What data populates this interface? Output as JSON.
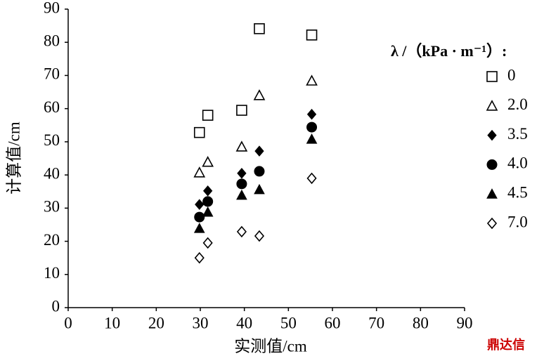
{
  "chart_data": {
    "type": "scatter",
    "x_label": "实测值/cm",
    "y_label": "计算值/cm",
    "legend_title": "λ /（kPa · m⁻¹）:",
    "watermark": "鼎达信",
    "x": [
      29.8,
      31.7,
      39.4,
      43.4,
      55.3
    ],
    "series": [
      {
        "name": "0",
        "color": "#000000",
        "marker": "square-open",
        "values": [
          52.8,
          58,
          59.5,
          84.1,
          82.2
        ]
      },
      {
        "name": "2.0",
        "color": "#000000",
        "marker": "triangle-open",
        "values": [
          40.7,
          43.9,
          48.5,
          64,
          68.4
        ]
      },
      {
        "name": "3.5",
        "color": "#000000",
        "marker": "diamond",
        "values": [
          31.1,
          35.2,
          40.5,
          47.2,
          58.3
        ]
      },
      {
        "name": "4.0",
        "color": "#000000",
        "marker": "circle",
        "values": [
          27.3,
          32,
          37.3,
          41.1,
          54.4
        ]
      },
      {
        "name": "4.5",
        "color": "#000000",
        "marker": "triangle",
        "values": [
          23.9,
          28.8,
          33.9,
          35.6,
          50.8
        ]
      },
      {
        "name": "7.0",
        "color": "#000000",
        "marker": "diamond-open",
        "values": [
          15,
          19.5,
          22.9,
          21.6,
          39
        ]
      }
    ],
    "xlim": [
      0,
      90
    ],
    "xticks": [
      0,
      10,
      20,
      30,
      40,
      50,
      60,
      70,
      80,
      90
    ],
    "ylim": [
      0,
      90
    ],
    "yticks": [
      0,
      10,
      20,
      30,
      40,
      50,
      60,
      70,
      80,
      90
    ],
    "grid": false
  }
}
